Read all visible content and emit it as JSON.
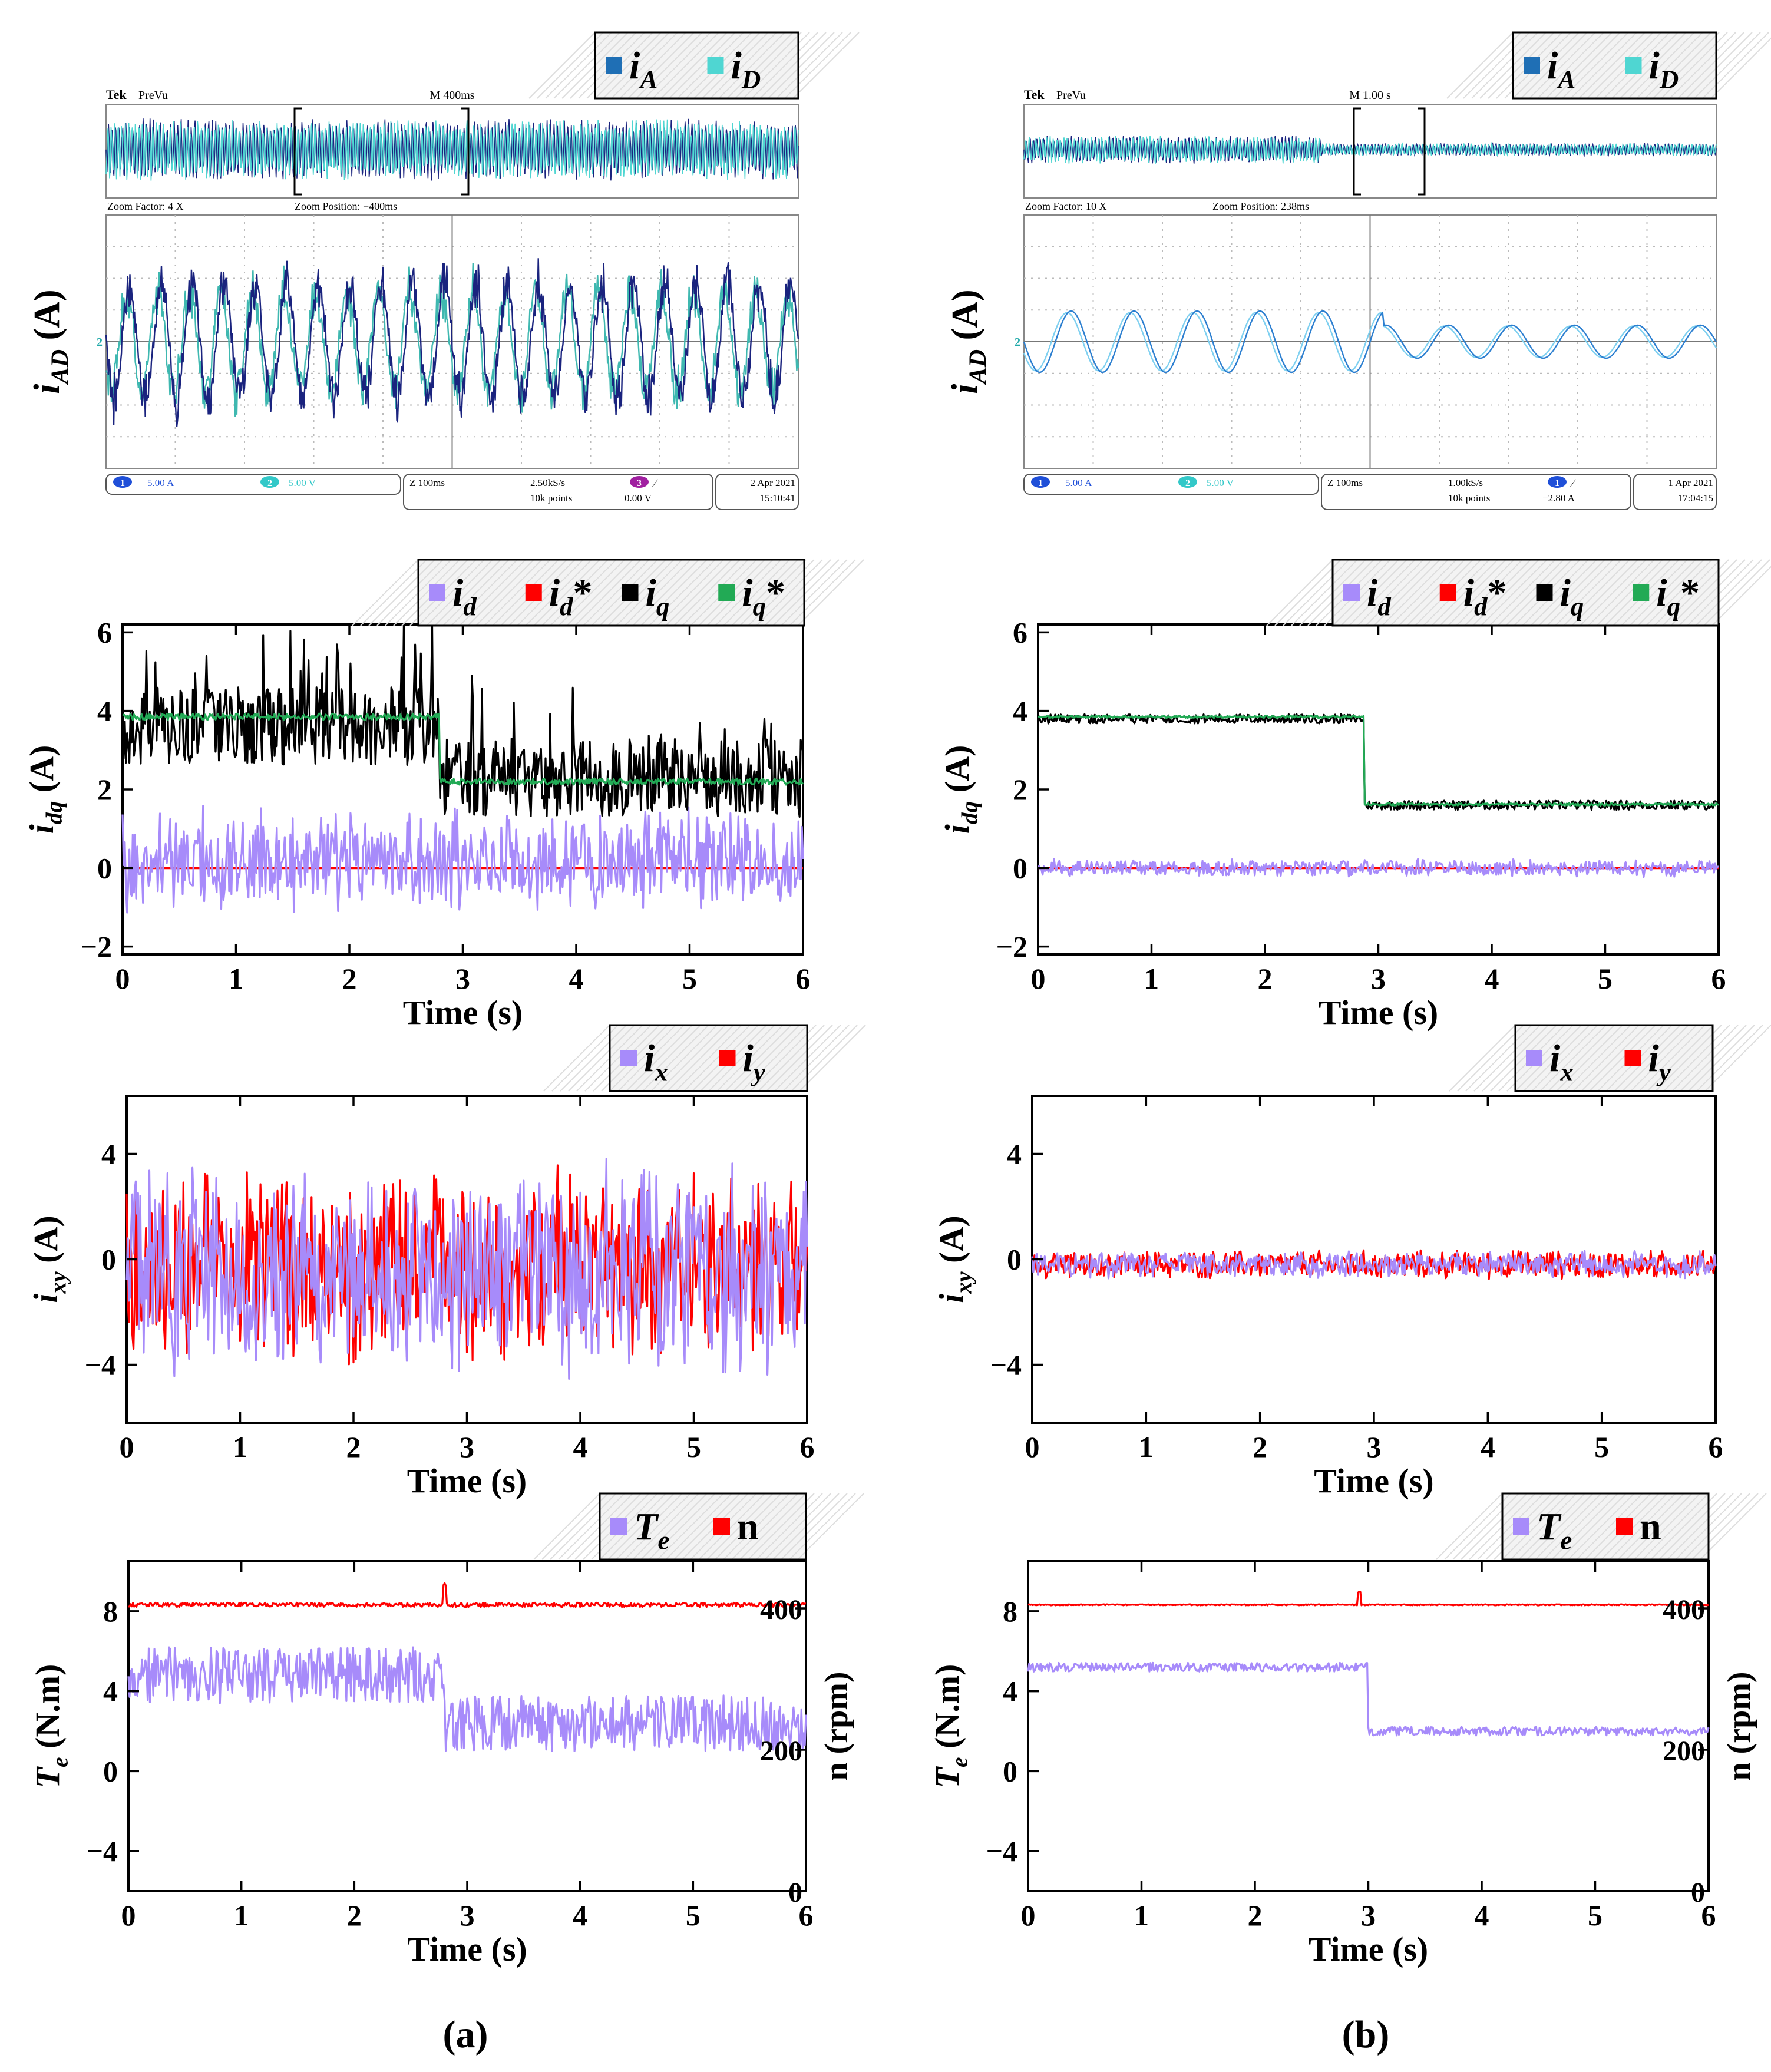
{
  "colors": {
    "iA": "#1f6fb5",
    "iD": "#4fd6d2",
    "id": "#a78bfa",
    "id_ref": "#ff0000",
    "iq": "#000000",
    "iq_ref": "#22aa55",
    "ix": "#a78bfa",
    "iy": "#ff0000",
    "Te": "#a78bfa",
    "n": "#ff0000",
    "scope_trace_dark": "#1a237e"
  },
  "captions": {
    "a": "(a)",
    "b": "(b)"
  },
  "time_label": "Time (s)",
  "scope": {
    "ylabel": "i_AD (A)",
    "legend": [
      "i_A",
      "i_D"
    ],
    "a": {
      "brand": "Tek",
      "mode": "PreVu",
      "main_timebase": "M 400ms",
      "zoom_factor": "Zoom Factor: 4 X",
      "zoom_position": "Zoom Position: −400ms",
      "ch1": "5.00 A",
      "ch2": "5.00 V",
      "zoom_scale": "Z 100ms",
      "sample_rate": "2.50kS/s",
      "record_length": "10k points",
      "trigger_ch": "3",
      "trigger_level": "0.00 V",
      "date": "2 Apr 2021",
      "time": "15:10:41"
    },
    "b": {
      "brand": "Tek",
      "mode": "PreVu",
      "main_timebase": "M 1.00 s",
      "zoom_factor": "Zoom Factor: 10 X",
      "zoom_position": "Zoom Position: 238ms",
      "ch1": "5.00 A",
      "ch2": "5.00 V",
      "zoom_scale": "Z 100ms",
      "sample_rate": "1.00kS/s",
      "record_length": "10k points",
      "trigger_ch": "1",
      "trigger_level": "−2.80 A",
      "date": "1 Apr 2021",
      "time": "17:04:15"
    }
  },
  "chart_data": [
    {
      "panel": "a-dq",
      "type": "line",
      "legend": [
        "i_d",
        "i_d*",
        "i_q",
        "i_q*"
      ],
      "ylabel": "i_dq (A)",
      "xlabel": "Time (s)",
      "xlim": [
        0,
        6
      ],
      "ylim": [
        -2.2,
        6.2
      ],
      "xticks": [
        0,
        1,
        2,
        3,
        4,
        5,
        6
      ],
      "yticks": [
        -2,
        0,
        2,
        4,
        6
      ],
      "series": [
        {
          "name": "i_d*",
          "kind": "const",
          "value": 0
        },
        {
          "name": "i_d",
          "kind": "noise",
          "mean": 0.2,
          "amp": 1.3,
          "seed": 11
        },
        {
          "name": "i_q",
          "kind": "step",
          "t_step": 2.8,
          "before": 3.6,
          "after": 2.3,
          "amp": 1.0,
          "spiky": true,
          "seed": 12
        },
        {
          "name": "i_q*",
          "kind": "step",
          "t_step": 2.8,
          "before": 3.85,
          "after": 2.2,
          "amp": 0.08,
          "seed": 13
        }
      ]
    },
    {
      "panel": "b-dq",
      "type": "line",
      "legend": [
        "i_d",
        "i_d*",
        "i_q",
        "i_q*"
      ],
      "ylabel": "i_dq (A)",
      "xlabel": "Time (s)",
      "xlim": [
        0,
        6
      ],
      "ylim": [
        -2.2,
        6.2
      ],
      "xticks": [
        0,
        1,
        2,
        3,
        4,
        5,
        6
      ],
      "yticks": [
        -2,
        0,
        2,
        4,
        6
      ],
      "series": [
        {
          "name": "i_d*",
          "kind": "const",
          "value": 0
        },
        {
          "name": "i_d",
          "kind": "noise",
          "mean": 0.0,
          "amp": 0.22,
          "seed": 21
        },
        {
          "name": "i_q",
          "kind": "step",
          "t_step": 2.88,
          "before": 3.8,
          "after": 1.6,
          "amp": 0.12,
          "seed": 22
        },
        {
          "name": "i_q*",
          "kind": "step",
          "t_step": 2.88,
          "before": 3.85,
          "after": 1.62,
          "amp": 0.03,
          "seed": 23
        }
      ]
    },
    {
      "panel": "a-xy",
      "type": "line",
      "legend": [
        "i_x",
        "i_y"
      ],
      "ylabel": "i_xy (A)",
      "xlabel": "Time (s)",
      "xlim": [
        0,
        6
      ],
      "ylim": [
        -6.2,
        6.2
      ],
      "xticks": [
        0,
        1,
        2,
        3,
        4,
        5,
        6
      ],
      "yticks": [
        -4,
        0,
        4
      ],
      "series": [
        {
          "name": "i_y",
          "kind": "noise",
          "mean": -0.3,
          "amp": 3.6,
          "seed": 31
        },
        {
          "name": "i_x",
          "kind": "noise",
          "mean": -0.4,
          "amp": 4.0,
          "seed": 32
        }
      ]
    },
    {
      "panel": "b-xy",
      "type": "line",
      "legend": [
        "i_x",
        "i_y"
      ],
      "ylabel": "i_xy (A)",
      "xlabel": "Time (s)",
      "xlim": [
        0,
        6
      ],
      "ylim": [
        -6.2,
        6.2
      ],
      "xticks": [
        0,
        1,
        2,
        3,
        4,
        5,
        6
      ],
      "yticks": [
        -4,
        0,
        4
      ],
      "series": [
        {
          "name": "i_y",
          "kind": "noise",
          "mean": -0.2,
          "amp": 0.55,
          "seed": 41
        },
        {
          "name": "i_x",
          "kind": "noise",
          "mean": -0.2,
          "amp": 0.5,
          "seed": 42
        }
      ]
    },
    {
      "panel": "a-te",
      "type": "line",
      "legend": [
        "T_e",
        "n"
      ],
      "ylabel": "T_e (N.m)",
      "ylabel_right": "n (rpm)",
      "xlabel": "Time (s)",
      "xlim": [
        0,
        6
      ],
      "ylim": [
        -6.0,
        10.5
      ],
      "ylim_right": [
        0,
        420
      ],
      "xticks": [
        0,
        1,
        2,
        3,
        4,
        5,
        6
      ],
      "yticks": [
        -4,
        0,
        4,
        8
      ],
      "yticks_right": [
        0,
        200,
        400
      ],
      "series": [
        {
          "name": "n",
          "axis": "right",
          "kind": "flat",
          "value": 405,
          "amp": 3,
          "spike_t": 2.8,
          "spike_h": 28,
          "seed": 51
        },
        {
          "name": "T_e",
          "kind": "step",
          "t_step": 2.8,
          "before": 4.8,
          "after": 2.4,
          "amp": 1.4,
          "seed": 52
        }
      ]
    },
    {
      "panel": "b-te",
      "type": "line",
      "legend": [
        "T_e",
        "n"
      ],
      "ylabel": "T_e (N.m)",
      "ylabel_right": "n (rpm)",
      "xlabel": "Time (s)",
      "xlim": [
        0,
        6
      ],
      "ylim": [
        -6.0,
        10.5
      ],
      "ylim_right": [
        0,
        420
      ],
      "xticks": [
        0,
        1,
        2,
        3,
        4,
        5,
        6
      ],
      "yticks": [
        -4,
        0,
        4,
        8
      ],
      "yticks_right": [
        0,
        200,
        400
      ],
      "series": [
        {
          "name": "n",
          "axis": "right",
          "kind": "flat",
          "value": 405,
          "amp": 0.8,
          "spike_t": 2.92,
          "spike_h": 18,
          "seed": 61
        },
        {
          "name": "T_e",
          "kind": "step",
          "t_step": 3.0,
          "before": 5.2,
          "after": 2.0,
          "amp": 0.22,
          "seed": 62
        }
      ]
    }
  ]
}
